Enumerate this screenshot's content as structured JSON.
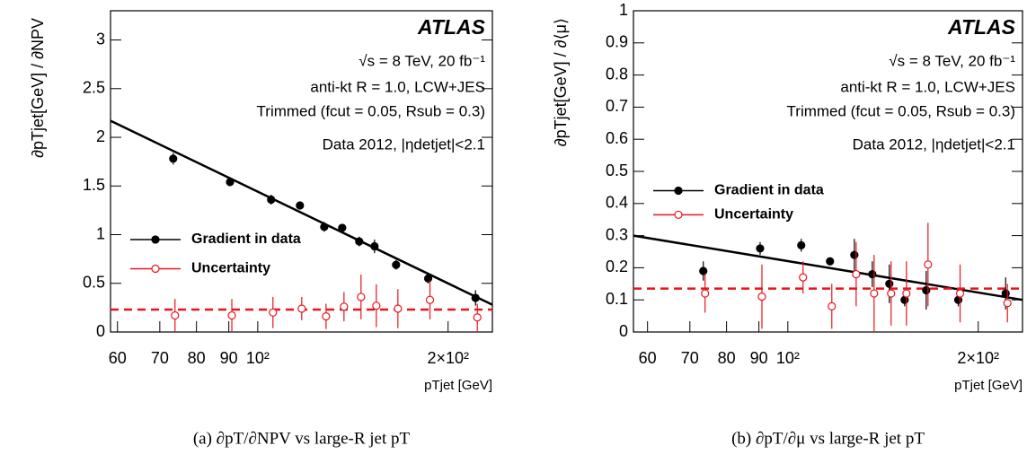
{
  "chart_data": [
    {
      "type": "scatter",
      "caption": "(a)  ∂pT/∂NPV vs large-R jet pT",
      "y_label": "∂pTjet[GeV] / ∂NPV",
      "x_label": "pTjet [GeV]",
      "annotations": [
        "ATLAS",
        "√s = 8 TeV, 20 fb⁻¹",
        "anti-kt R = 1.0, LCW+JES",
        "Trimmed (fcut = 0.05, Rsub = 0.3)",
        "Data 2012, |ηdetjet|<2.1"
      ],
      "x": [
        73.5,
        90.4,
        105,
        116.6,
        127.4,
        136,
        144.7,
        153,
        165.5,
        186,
        221
      ],
      "xscale": "log",
      "xlim": [
        58.5,
        235
      ],
      "xticks": [
        60,
        70,
        80,
        90,
        {
          "value": 100,
          "label": "10²"
        },
        {
          "value": 200,
          "label": "2×10²"
        }
      ],
      "ylim": [
        0,
        3.3
      ],
      "yticks": [
        0,
        0.5,
        1,
        1.5,
        2,
        2.5,
        3
      ],
      "series": [
        {
          "name": "Gradient in data",
          "color": "#000000",
          "marker": "filled",
          "values": [
            1.78,
            1.54,
            1.36,
            1.3,
            1.08,
            1.07,
            0.93,
            0.88,
            0.69,
            0.55,
            0.35
          ],
          "errors": [
            0.06,
            0.03,
            0.05,
            0.02,
            0.05,
            0.04,
            0.05,
            0.07,
            0.05,
            0.05,
            0.08
          ]
        },
        {
          "name": "Uncertainty",
          "color": "#e8141c",
          "marker": "open",
          "values": [
            0.17,
            0.17,
            0.2,
            0.24,
            0.16,
            0.26,
            0.36,
            0.27,
            0.24,
            0.33,
            0.15
          ],
          "errors": [
            0.17,
            0.17,
            0.16,
            0.12,
            0.13,
            0.15,
            0.23,
            0.22,
            0.2,
            0.2,
            0.14
          ]
        }
      ],
      "fit": {
        "x": [
          58.5,
          235
        ],
        "values": [
          2.17,
          0.28
        ],
        "color": "#000000"
      },
      "reference_line": {
        "value": 0.23,
        "color": "#e8141c"
      }
    },
    {
      "type": "scatter",
      "caption": "(b)  ∂pT/∂μ vs large-R jet pT",
      "y_label": "∂pTjet[GeV] / ∂⟨μ⟩",
      "x_label": "pTjet [GeV]",
      "annotations": [
        "ATLAS",
        "√s = 8 TeV, 20 fb⁻¹",
        "anti-kt R = 1.0, LCW+JES",
        "Trimmed (fcut = 0.05, Rsub = 0.3)",
        "Data 2012, |ηdetjet|<2.1"
      ],
      "x": [
        73.5,
        90.4,
        105,
        116.6,
        127.4,
        136,
        144.7,
        153,
        165.5,
        186,
        221
      ],
      "xscale": "log",
      "xlim": [
        57,
        235
      ],
      "xticks": [
        60,
        70,
        80,
        90,
        {
          "value": 100,
          "label": "10²"
        },
        {
          "value": 200,
          "label": "2×10²"
        }
      ],
      "ylim": [
        0,
        1
      ],
      "yticks": [
        0,
        0.1,
        0.2,
        0.3,
        0.4,
        0.5,
        0.6,
        0.7,
        0.8,
        0.9,
        1
      ],
      "series": [
        {
          "name": "Gradient in data",
          "color": "#000000",
          "marker": "filled",
          "values": [
            0.19,
            0.26,
            0.27,
            0.22,
            0.24,
            0.18,
            0.15,
            0.1,
            0.13,
            0.1,
            0.12
          ],
          "errors": [
            0.03,
            0.02,
            0.02,
            0.01,
            0.05,
            0.04,
            0.06,
            0.02,
            0.06,
            0.02,
            0.05
          ]
        },
        {
          "name": "Uncertainty",
          "color": "#e8141c",
          "marker": "open",
          "values": [
            0.12,
            0.11,
            0.17,
            0.08,
            0.18,
            0.12,
            0.12,
            0.12,
            0.21,
            0.12,
            0.09
          ],
          "errors": [
            0.06,
            0.1,
            0.05,
            0.07,
            0.1,
            0.12,
            0.1,
            0.1,
            0.13,
            0.09,
            0.06
          ]
        }
      ],
      "fit": {
        "x": [
          57,
          235
        ],
        "values": [
          0.3,
          0.1
        ],
        "color": "#000000"
      },
      "reference_line": {
        "value": 0.135,
        "color": "#e8141c"
      }
    }
  ]
}
